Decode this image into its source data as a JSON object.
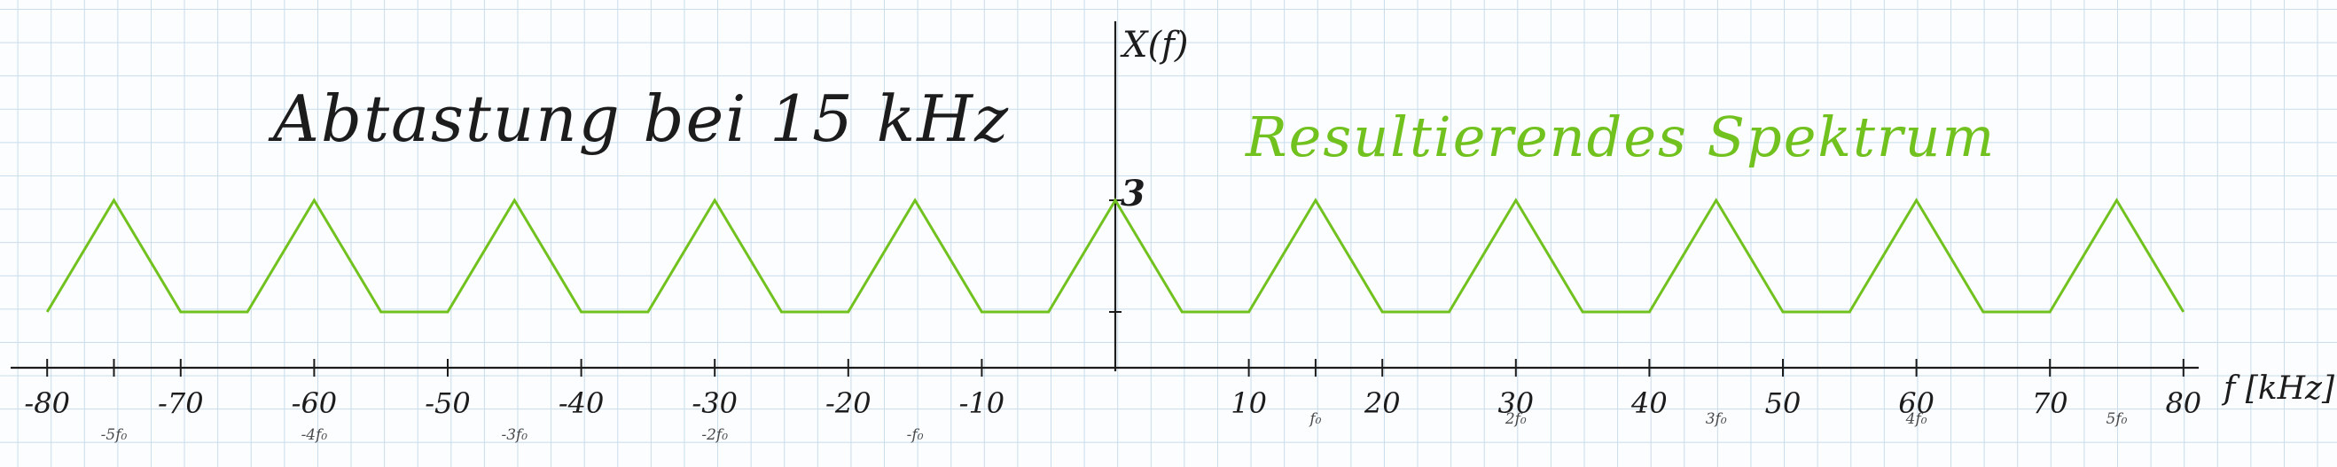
{
  "texts": {
    "title": "Abtastung bei 15 kHz",
    "subtitle": "Resultierendes Spektrum",
    "ylabel": "X(f)",
    "xlabel": "f [kHz]",
    "peak_label": "3"
  },
  "colors": {
    "spectrum": "#72c21f",
    "ink": "#1c1c1c",
    "grid": "#c9dcea"
  },
  "chart_data": {
    "type": "line",
    "xlim": [
      -80,
      80
    ],
    "ylim": [
      0,
      3
    ],
    "grid": true,
    "series": [
      {
        "values": [
          [
            -80,
            1
          ],
          [
            -75,
            3
          ],
          [
            -70,
            1
          ],
          [
            -65,
            1
          ],
          [
            -60,
            3
          ],
          [
            -55,
            1
          ],
          [
            -50,
            1
          ],
          [
            -45,
            3
          ],
          [
            -40,
            1
          ],
          [
            -35,
            1
          ],
          [
            -30,
            3
          ],
          [
            -25,
            1
          ],
          [
            -20,
            1
          ],
          [
            -15,
            3
          ],
          [
            -10,
            1
          ],
          [
            -5,
            1
          ],
          [
            0,
            3
          ],
          [
            5,
            1
          ],
          [
            10,
            1
          ],
          [
            15,
            3
          ],
          [
            20,
            1
          ],
          [
            25,
            1
          ],
          [
            30,
            3
          ],
          [
            35,
            1
          ],
          [
            40,
            1
          ],
          [
            45,
            3
          ],
          [
            50,
            1
          ],
          [
            55,
            1
          ],
          [
            60,
            3
          ],
          [
            65,
            1
          ],
          [
            70,
            1
          ],
          [
            75,
            3
          ],
          [
            80,
            1
          ]
        ]
      }
    ],
    "x_ticks": [
      -80,
      -75,
      -70,
      -60,
      -50,
      -40,
      -30,
      -20,
      -10,
      0,
      10,
      15,
      20,
      30,
      40,
      50,
      60,
      70,
      80
    ],
    "x_tick_labels": [
      {
        "value": -80,
        "label": "-80"
      },
      {
        "value": -70,
        "label": "-70"
      },
      {
        "value": -60,
        "label": "-60"
      },
      {
        "value": -50,
        "label": "-50"
      },
      {
        "value": -40,
        "label": "-40"
      },
      {
        "value": -30,
        "label": "-30"
      },
      {
        "value": -20,
        "label": "-20"
      },
      {
        "value": -10,
        "label": "-10"
      },
      {
        "value": 10,
        "label": "10"
      },
      {
        "value": 20,
        "label": "20"
      },
      {
        "value": 30,
        "label": "30"
      },
      {
        "value": 40,
        "label": "40"
      },
      {
        "value": 50,
        "label": "50"
      },
      {
        "value": 60,
        "label": "60"
      },
      {
        "value": 70,
        "label": "70"
      },
      {
        "value": 80,
        "label": "80"
      }
    ],
    "annotations": [
      {
        "value": -75,
        "label": "-5f₀",
        "color": "ink"
      },
      {
        "value": -60,
        "label": "-4f₀",
        "color": "ink"
      },
      {
        "value": -45,
        "label": "-3f₀",
        "color": "ink"
      },
      {
        "value": -30,
        "label": "-2f₀",
        "color": "ink"
      },
      {
        "value": -15,
        "label": "-f₀",
        "color": "ink"
      },
      {
        "value": 15,
        "label": "f₀",
        "color": "ink"
      },
      {
        "value": 30,
        "label": "2f₀",
        "color": "ink"
      },
      {
        "value": 45,
        "label": "3f₀",
        "color": "ink"
      },
      {
        "value": 60,
        "label": "4f₀",
        "color": "ink"
      },
      {
        "value": 75,
        "label": "5f₀",
        "color": "ink"
      }
    ]
  }
}
